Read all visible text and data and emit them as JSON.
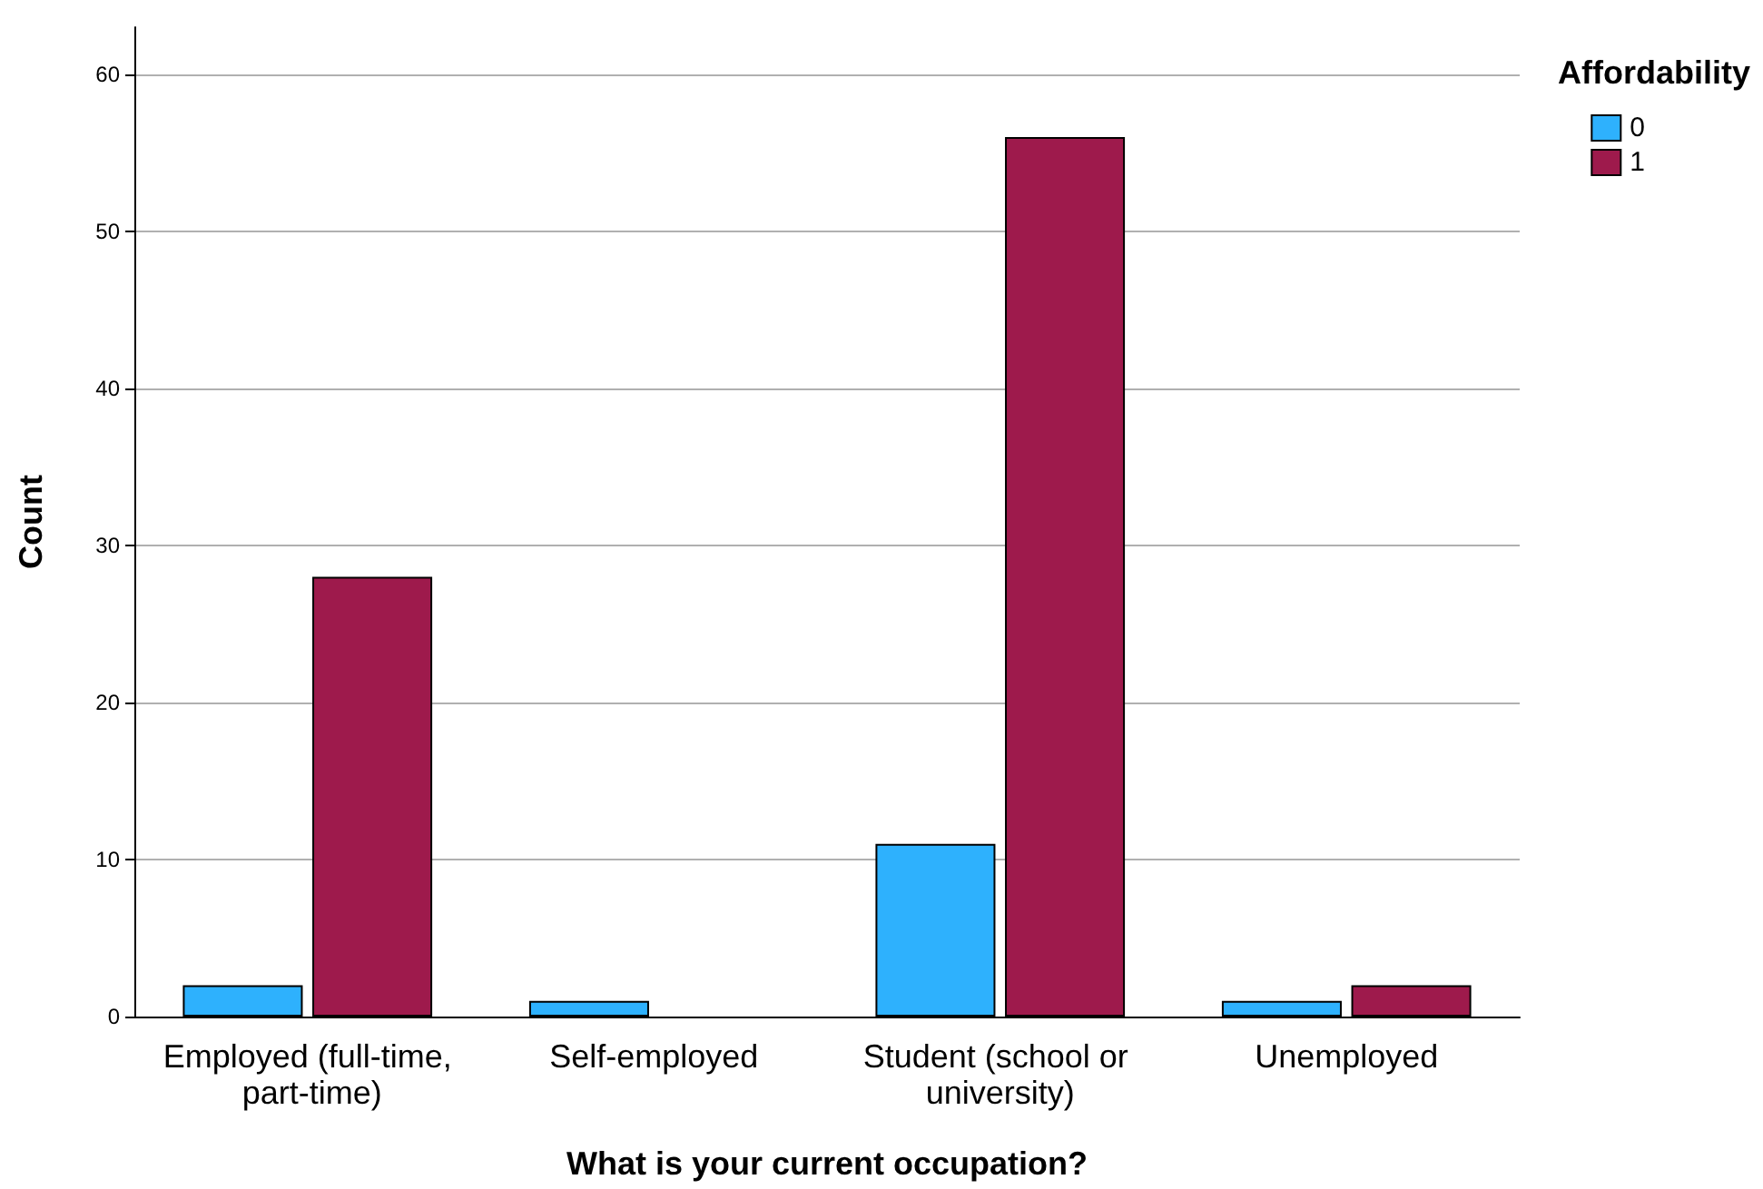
{
  "chart_data": {
    "type": "bar",
    "xlabel": "What is your current occupation?",
    "ylabel": "Count",
    "legend_title": "Affordability",
    "categories": [
      "Employed (full-time, part-time)",
      "Self-employed",
      "Student (school or university)",
      "Unemployed"
    ],
    "series": [
      {
        "name": "0",
        "color": "#2eb1fd",
        "values": [
          2,
          1,
          11,
          1
        ]
      },
      {
        "name": "1",
        "color": "#9e1a4c",
        "values": [
          28,
          null,
          56,
          2
        ]
      }
    ],
    "ylim": [
      0,
      63
    ],
    "yticks": [
      0,
      10,
      20,
      30,
      40,
      50,
      60
    ],
    "grid": "y",
    "legend": "top right"
  }
}
